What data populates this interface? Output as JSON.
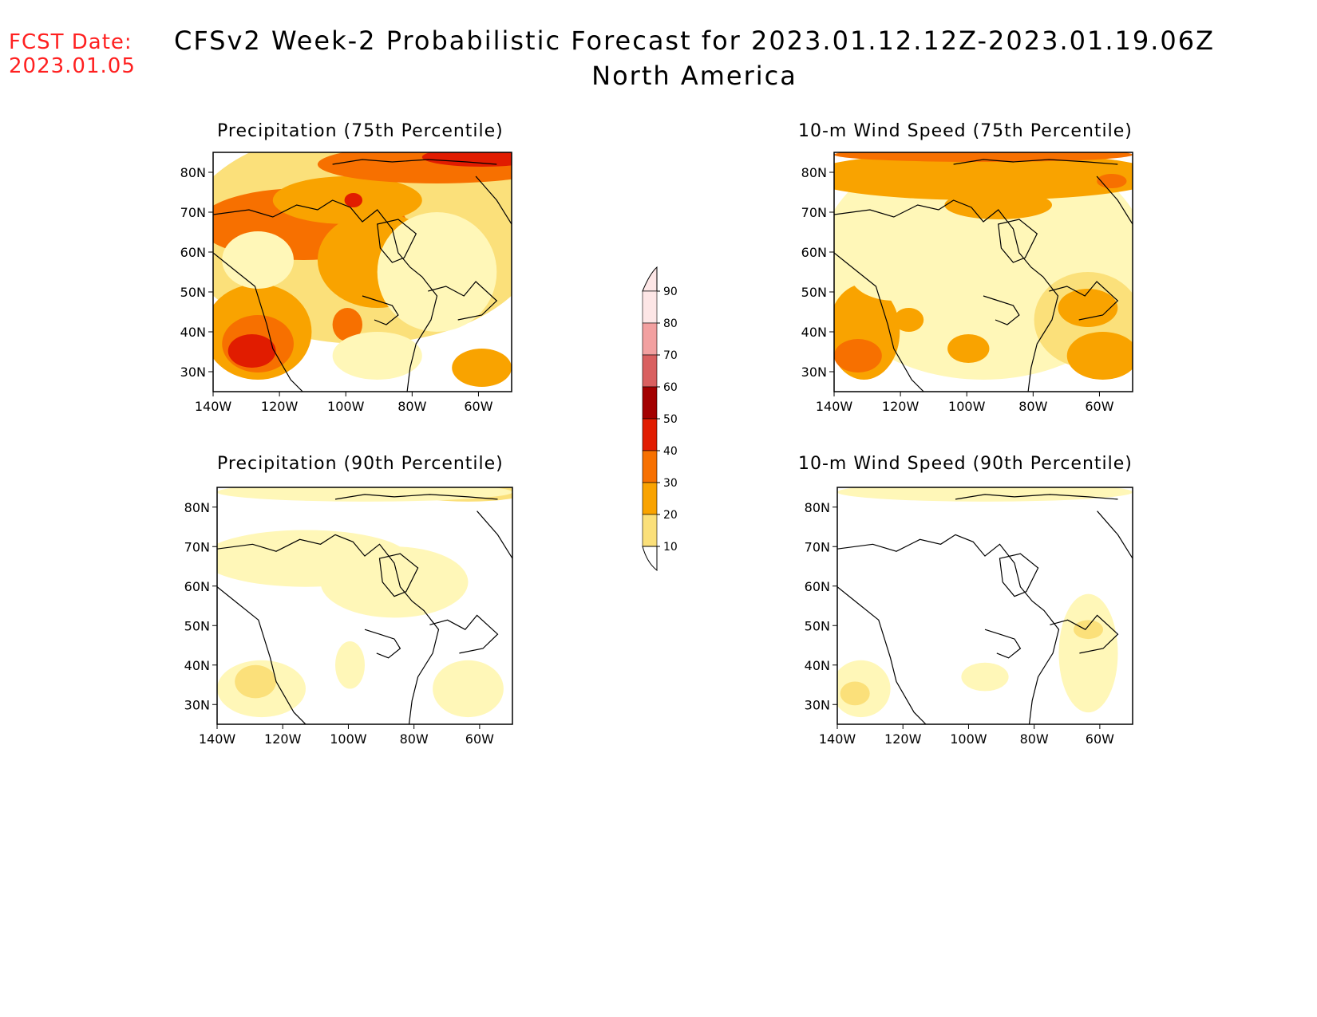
{
  "header": {
    "fcst_label": "FCST Date:",
    "fcst_date": "2023.01.05",
    "title": "CFSv2 Week-2 Probabilistic Forecast for 2023.01.12.12Z-2023.01.19.06Z",
    "subtitle": "North America"
  },
  "panels": [
    {
      "id": "precip-75",
      "title": "Precipitation (75th Percentile)"
    },
    {
      "id": "wind-75",
      "title": "10-m Wind Speed (75th Percentile)"
    },
    {
      "id": "precip-90",
      "title": "Precipitation (90th Percentile)"
    },
    {
      "id": "wind-90",
      "title": "10-m Wind Speed (90th Percentile)"
    }
  ],
  "axes": {
    "lat_labels": [
      "80N",
      "70N",
      "60N",
      "50N",
      "40N",
      "30N"
    ],
    "lon_labels": [
      "140W",
      "120W",
      "100W",
      "80W",
      "60W"
    ]
  },
  "colorbar": {
    "labels": [
      "10",
      "20",
      "30",
      "40",
      "50",
      "60",
      "70",
      "80",
      "90"
    ],
    "colors": [
      "#fff7b8",
      "#fbe07a",
      "#f9a300",
      "#f77000",
      "#e11c00",
      "#a30000",
      "#d96060",
      "#f2a0a0",
      "#fde6e6"
    ]
  }
}
